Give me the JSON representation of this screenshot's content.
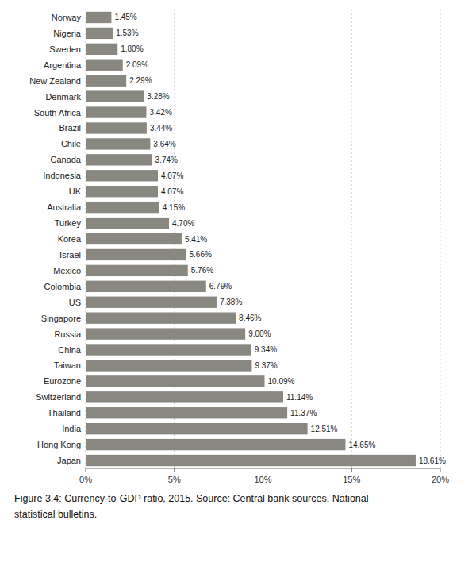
{
  "chart_data": {
    "type": "bar",
    "orientation": "horizontal",
    "categories": [
      "Japan",
      "Hong Kong",
      "India",
      "Thailand",
      "Switzerland",
      "Eurozone",
      "Taiwan",
      "China",
      "Russia",
      "Singapore",
      "US",
      "Colombia",
      "Mexico",
      "Israel",
      "Korea",
      "Turkey",
      "Australia",
      "UK",
      "Indonesia",
      "Canada",
      "Chile",
      "Brazil",
      "South Africa",
      "Denmark",
      "New Zealand",
      "Argentina",
      "Sweden",
      "Nigeria",
      "Norway"
    ],
    "values": [
      18.61,
      14.65,
      12.51,
      11.37,
      11.14,
      10.09,
      9.37,
      9.34,
      9.0,
      8.46,
      7.38,
      6.79,
      5.76,
      5.66,
      5.41,
      4.7,
      4.15,
      4.07,
      4.07,
      3.74,
      3.64,
      3.44,
      3.42,
      3.28,
      2.29,
      2.09,
      1.8,
      1.53,
      1.45
    ],
    "value_labels": [
      "18.61%",
      "14.65%",
      "12.51%",
      "11.37%",
      "11.14%",
      "10.09%",
      "9.37%",
      "9.34%",
      "9.00%",
      "8.46%",
      "7.38%",
      "6.79%",
      "5.76%",
      "5.66%",
      "5.41%",
      "4.70%",
      "4.15%",
      "4.07%",
      "4.07%",
      "3.74%",
      "3.64%",
      "3.44%",
      "3.42%",
      "3.28%",
      "2.29%",
      "2.09%",
      "1.80%",
      "1.53%",
      "1.45%"
    ],
    "data_labels": true,
    "color": "#888880",
    "xlim": [
      0,
      20
    ],
    "xticks": [
      {
        "value": 0,
        "label": "0%"
      },
      {
        "value": 5,
        "label": "5%"
      },
      {
        "value": 10,
        "label": "10%"
      },
      {
        "value": 15,
        "label": "15%"
      },
      {
        "value": 20,
        "label": "20%"
      }
    ],
    "grid": true,
    "annotations": [
      "Figure 3.4: Currency-to-GDP ratio, 2015. Source: Central bank sources, National",
      "statistical bulletins."
    ]
  }
}
